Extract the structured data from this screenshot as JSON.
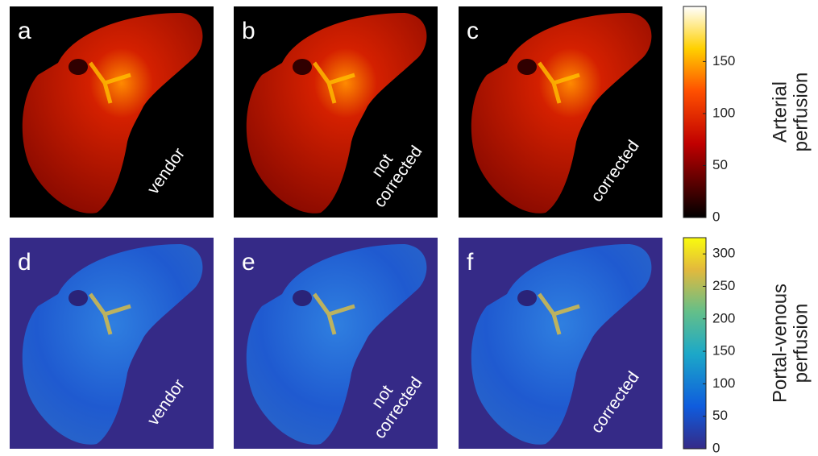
{
  "rows": [
    {
      "panels": [
        {
          "label": "a",
          "caption": [
            "vendor"
          ]
        },
        {
          "label": "b",
          "caption": [
            "not",
            "corrected"
          ]
        },
        {
          "label": "c",
          "caption": [
            "corrected"
          ]
        }
      ],
      "colorbar": {
        "title": [
          "Arterial",
          "perfusion"
        ],
        "range": [
          0,
          203
        ],
        "ticks": [
          0,
          50,
          100,
          150
        ]
      }
    },
    {
      "panels": [
        {
          "label": "d",
          "caption": [
            "vendor"
          ]
        },
        {
          "label": "e",
          "caption": [
            "not",
            "corrected"
          ]
        },
        {
          "label": "f",
          "caption": [
            "corrected"
          ]
        }
      ],
      "colorbar": {
        "title": [
          "Portal-venous",
          "perfusion"
        ],
        "range": [
          0,
          325
        ],
        "ticks": [
          0,
          50,
          100,
          150,
          200,
          250,
          300
        ]
      }
    }
  ]
}
